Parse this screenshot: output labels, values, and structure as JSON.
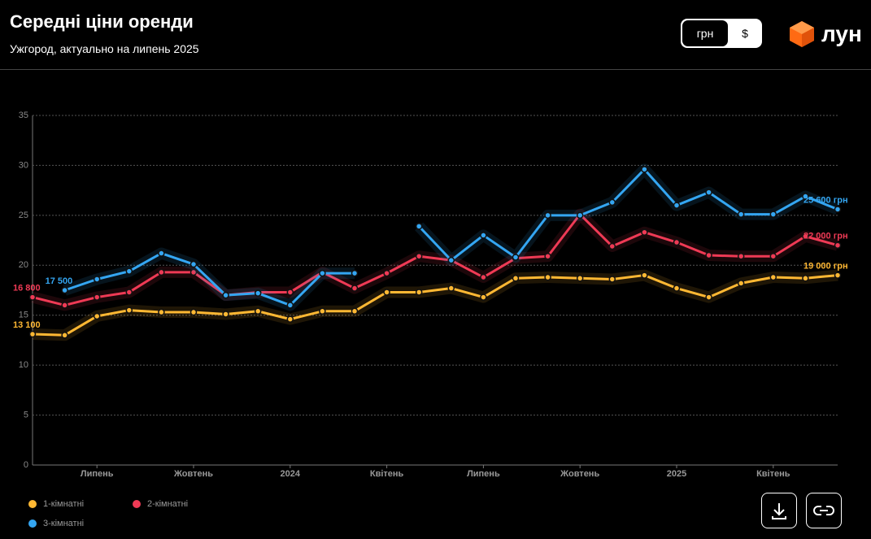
{
  "chart_data": {
    "type": "line",
    "title": "Середні ціни оренди",
    "subtitle": "Ужгород, актуально на липень 2025",
    "categories": [
      null,
      null,
      "Липень",
      null,
      null,
      "Жовтень",
      null,
      null,
      "2024",
      null,
      null,
      "Квітень",
      null,
      null,
      "Липень",
      null,
      null,
      "Жовтень",
      null,
      null,
      "2025",
      null,
      null,
      "Квітень",
      null,
      null
    ],
    "series": [
      {
        "name": "1-кімнатні",
        "color": "#ffb833",
        "values": [
          13.1,
          13.0,
          14.9,
          15.5,
          15.3,
          15.3,
          15.1,
          15.4,
          14.6,
          15.4,
          15.4,
          17.3,
          17.3,
          17.7,
          16.8,
          18.7,
          18.8,
          18.7,
          18.6,
          19.0,
          17.7,
          16.8,
          18.2,
          18.8,
          18.7,
          19.0
        ],
        "value_labels": [
          "13 100",
          null,
          null,
          null,
          null,
          null,
          null,
          null,
          null,
          null,
          null,
          null,
          null,
          null,
          null,
          null,
          null,
          null,
          null,
          null,
          null,
          null,
          null,
          null,
          null,
          "19 000 грн"
        ]
      },
      {
        "name": "2-кімнатні",
        "color": "#ef3a55",
        "values": [
          16.8,
          16.0,
          16.8,
          17.3,
          19.3,
          19.3,
          17.0,
          17.3,
          17.3,
          19.3,
          17.7,
          19.2,
          20.9,
          20.5,
          18.8,
          20.7,
          20.9,
          25.1,
          21.9,
          23.3,
          22.3,
          21.0,
          20.9,
          20.9,
          22.9,
          22.0
        ],
        "value_labels": [
          "16 800",
          null,
          null,
          null,
          null,
          null,
          null,
          null,
          null,
          null,
          null,
          null,
          null,
          null,
          null,
          null,
          null,
          null,
          null,
          null,
          null,
          null,
          null,
          null,
          null,
          "22 000 грн"
        ]
      },
      {
        "name": "3-кімнатні",
        "color": "#34a6f2",
        "values": [
          null,
          17.5,
          18.6,
          19.4,
          21.2,
          20.1,
          17.0,
          17.2,
          16.0,
          19.2,
          19.2,
          null,
          23.9,
          20.5,
          23.0,
          20.8,
          25.0,
          25.0,
          26.3,
          29.6,
          26.0,
          27.3,
          25.1,
          25.1,
          26.9,
          25.6
        ],
        "value_labels": [
          null,
          "17 500",
          null,
          null,
          null,
          null,
          null,
          null,
          null,
          null,
          null,
          null,
          null,
          null,
          null,
          null,
          null,
          null,
          null,
          null,
          null,
          null,
          null,
          null,
          null,
          "25 600 грн"
        ]
      }
    ],
    "ylim": [
      0,
      35
    ],
    "yticks": [
      0,
      5,
      10,
      15,
      20,
      25,
      30,
      35
    ],
    "grid": true
  },
  "currency_options": [
    "грн",
    "$"
  ],
  "logo": "лун"
}
